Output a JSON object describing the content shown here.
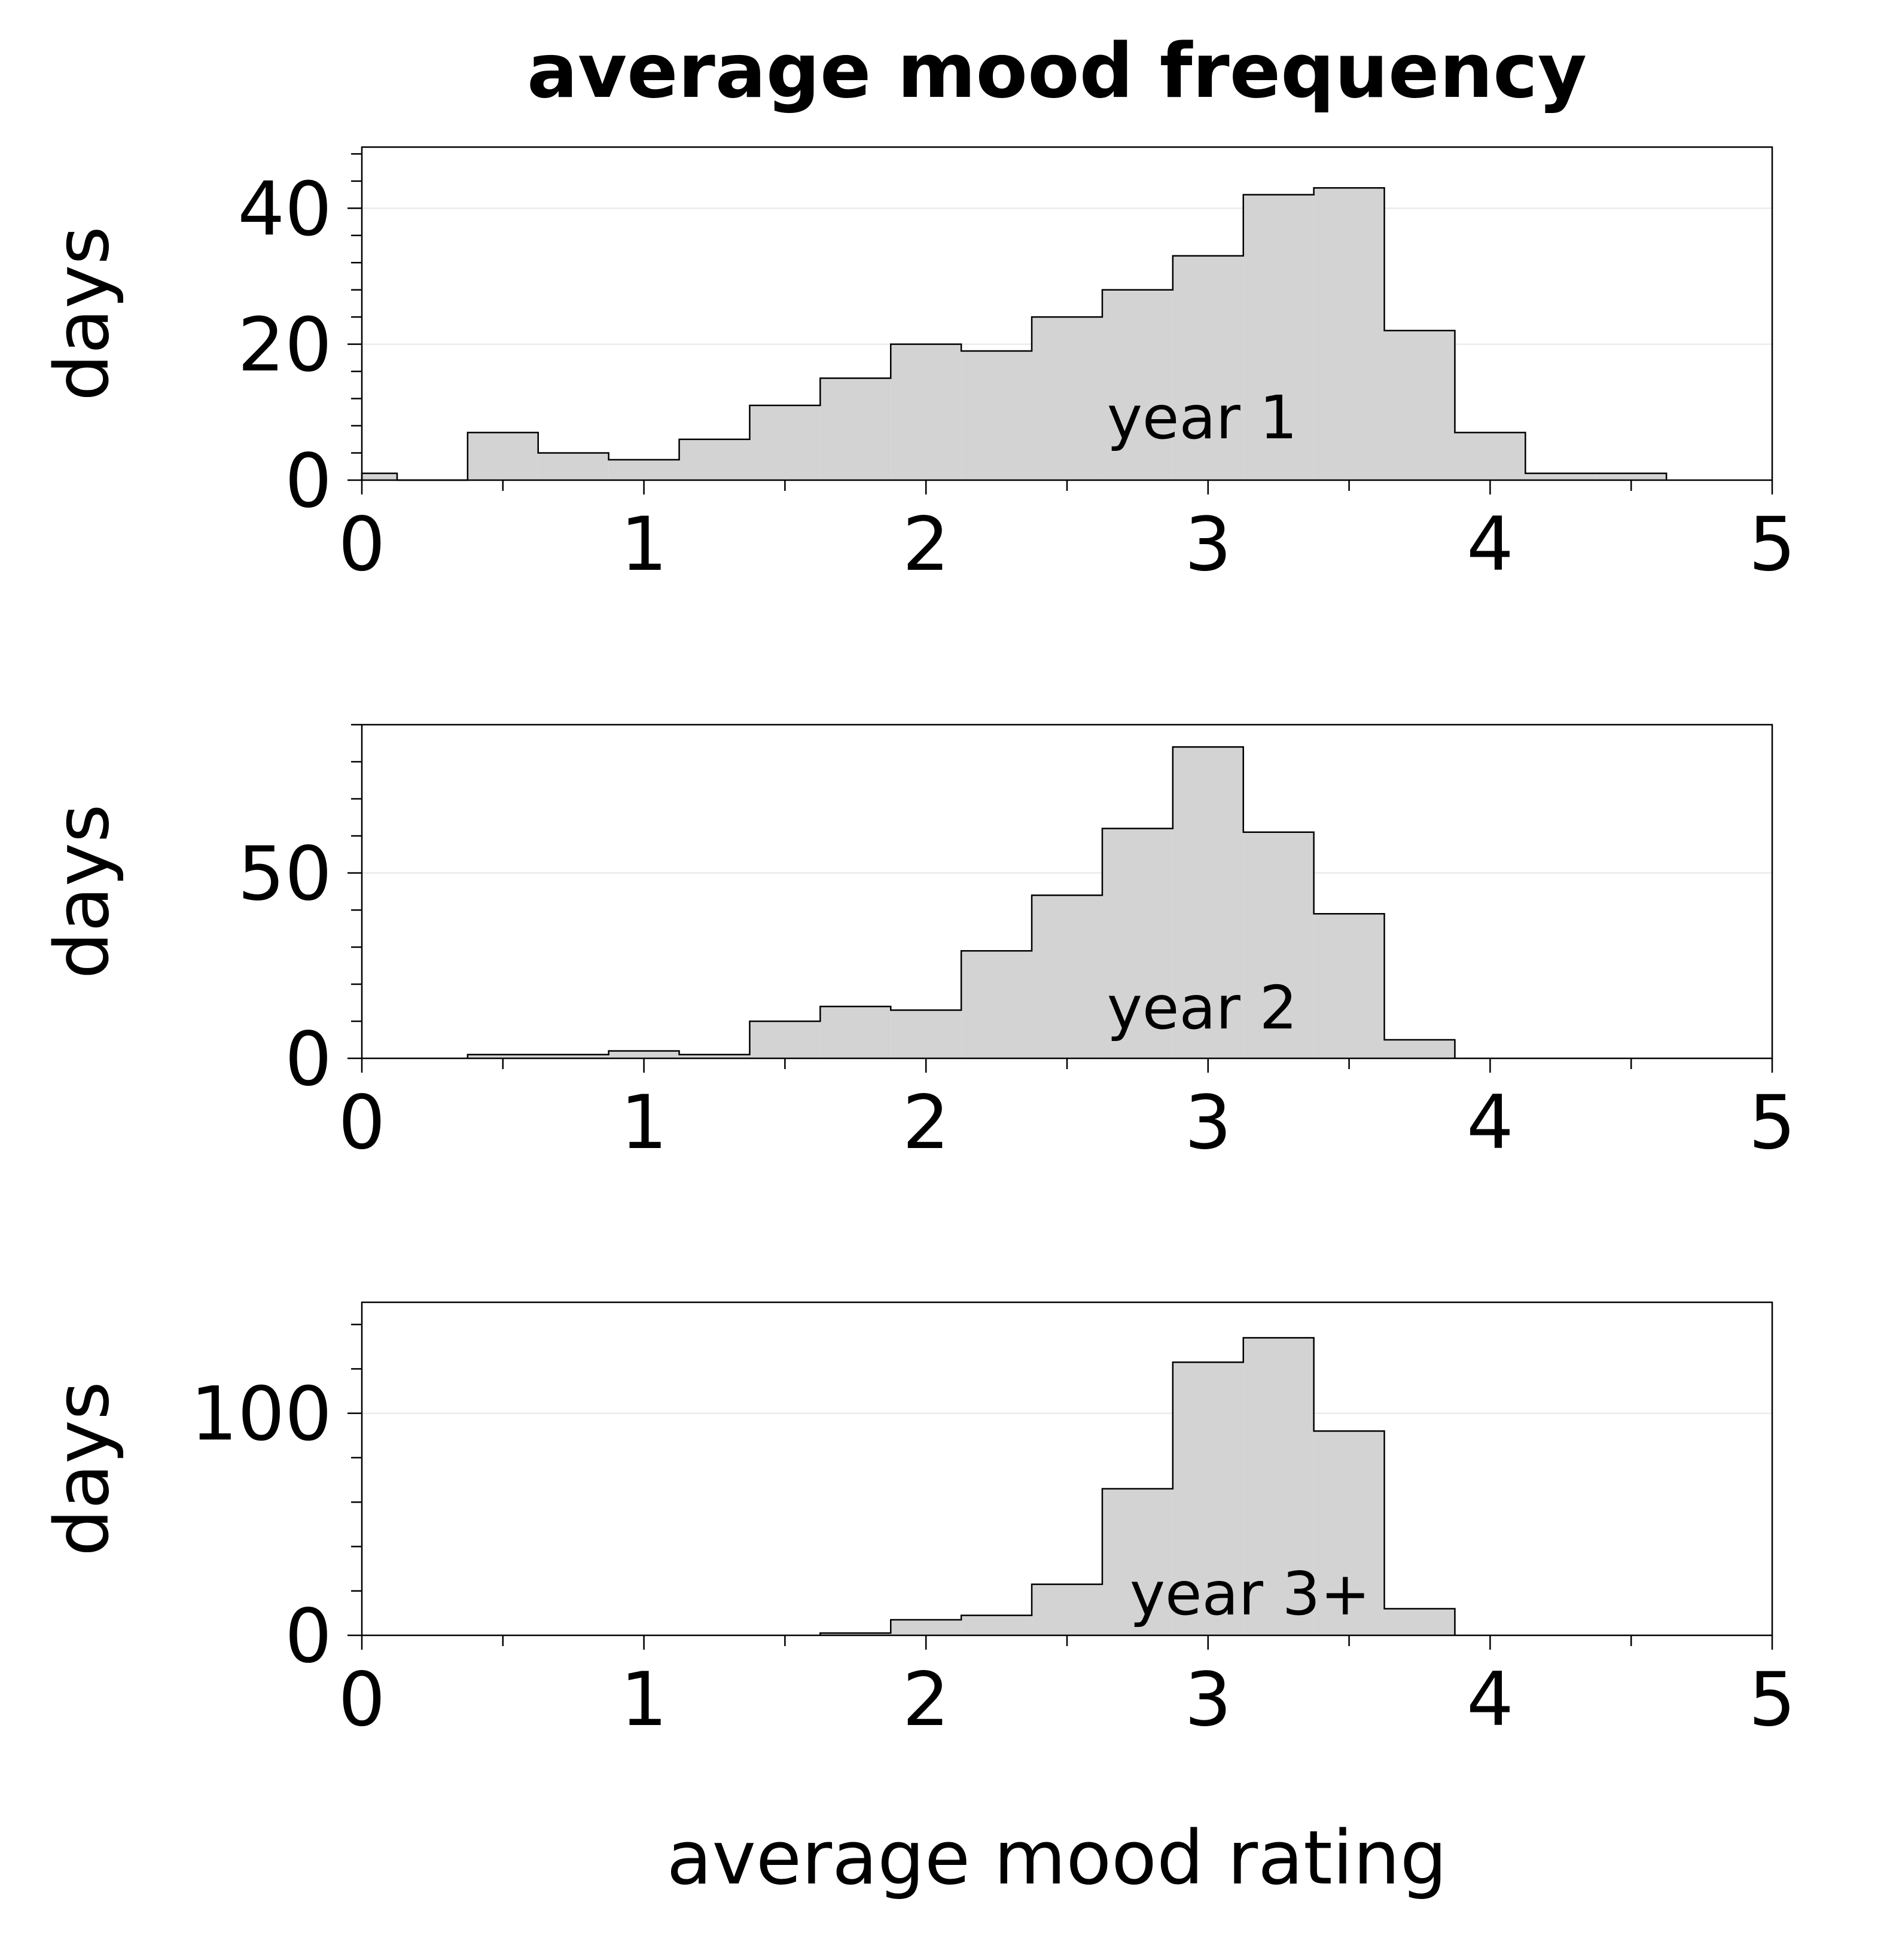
{
  "title": "average mood frequency",
  "xlabel": "average mood rating",
  "colors": {
    "bar_fill": "#d3d3d3",
    "bar_edge": "#000000",
    "grid": "#e6e6e6"
  },
  "chart_data": [
    {
      "type": "bar",
      "ylabel": "days",
      "annotation": "year 1",
      "bin_edges": [
        0,
        0.125,
        0.375,
        0.625,
        0.875,
        1.125,
        1.375,
        1.625,
        1.875,
        2.125,
        2.375,
        2.625,
        2.875,
        3.125,
        3.375,
        3.625,
        3.875,
        4.125,
        4.375,
        4.625
      ],
      "values": [
        1,
        0,
        7,
        4,
        3,
        6,
        11,
        15,
        20,
        19,
        24,
        28,
        33,
        42,
        43,
        22,
        7,
        1,
        1
      ],
      "xlim": [
        0,
        5
      ],
      "ylim": [
        0,
        49
      ],
      "xticks": [
        0,
        1,
        2,
        3,
        4,
        5
      ],
      "xtick_labels": [
        "0",
        "1",
        "2",
        "3",
        "4",
        "5"
      ],
      "yticks": [
        0,
        20,
        40
      ],
      "ytick_labels": [
        "0",
        "20",
        "40"
      ],
      "grid": true
    },
    {
      "type": "bar",
      "ylabel": "days",
      "annotation": "year 2",
      "bin_edges": [
        0.375,
        0.625,
        0.875,
        1.125,
        1.375,
        1.625,
        1.875,
        2.125,
        2.375,
        2.625,
        2.875,
        3.125,
        3.375,
        3.625,
        3.875
      ],
      "values": [
        1,
        1,
        2,
        1,
        10,
        14,
        13,
        29,
        44,
        62,
        84,
        61,
        39,
        5
      ],
      "xlim": [
        0,
        5
      ],
      "ylim": [
        0,
        90
      ],
      "xticks": [
        0,
        1,
        2,
        3,
        4,
        5
      ],
      "xtick_labels": [
        "0",
        "1",
        "2",
        "3",
        "4",
        "5"
      ],
      "yticks": [
        0,
        50
      ],
      "ytick_labels": [
        "0",
        "50"
      ],
      "grid": true
    },
    {
      "type": "bar",
      "ylabel": "days",
      "annotation": "year 3+",
      "bin_edges": [
        1.625,
        1.875,
        2.125,
        2.375,
        2.625,
        2.875,
        3.125,
        3.375,
        3.625,
        3.875
      ],
      "values": [
        1,
        7,
        9,
        23,
        66,
        123,
        134,
        92,
        12
      ],
      "xlim": [
        0,
        5
      ],
      "ylim": [
        0,
        150
      ],
      "xticks": [
        0,
        1,
        2,
        3,
        4,
        5
      ],
      "xtick_labels": [
        "0",
        "1",
        "2",
        "3",
        "4",
        "5"
      ],
      "yticks": [
        0,
        100
      ],
      "ytick_labels": [
        "0",
        "100"
      ],
      "grid": true
    }
  ]
}
